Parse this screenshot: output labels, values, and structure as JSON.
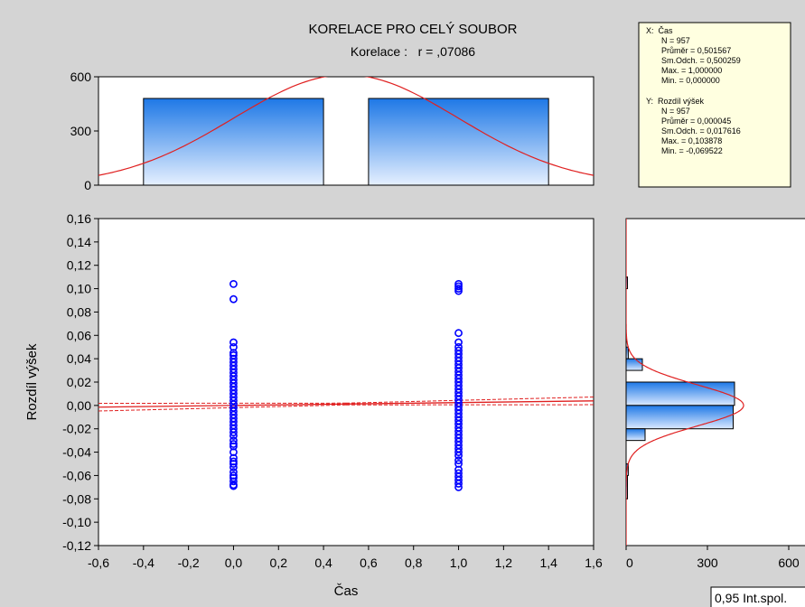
{
  "chart_data": {
    "type": "scatter",
    "title": "KORELACE PRO CELÝ SOUBOR",
    "subtitle": "Korelace :   r = ,07086",
    "xlabel": "Čas",
    "ylabel": "Rozdíl výšek",
    "xlim": [
      -0.6,
      1.6
    ],
    "ylim": [
      -0.12,
      0.16
    ],
    "x_ticks": [
      "-0,6",
      "-0,4",
      "-0,2",
      "0,0",
      "0,2",
      "0,4",
      "0,6",
      "0,8",
      "1,0",
      "1,2",
      "1,4",
      "1,6"
    ],
    "y_ticks": [
      "-0,12",
      "-0,10",
      "-0,08",
      "-0,06",
      "-0,04",
      "-0,02",
      "0,00",
      "0,02",
      "0,04",
      "0,06",
      "0,08",
      "0,10",
      "0,12",
      "0,14",
      "0,16"
    ],
    "point_color": "#0000ff",
    "line_color": "#e02020",
    "series": [
      {
        "x": 0,
        "values": [
          0.104,
          0.091,
          0.054,
          0.05,
          0.045,
          0.043,
          0.04,
          0.037,
          0.034,
          0.031,
          0.028,
          0.025,
          0.022,
          0.019,
          0.016,
          0.013,
          0.01,
          0.007,
          0.004,
          0.001,
          -0.002,
          -0.005,
          -0.008,
          -0.011,
          -0.014,
          -0.017,
          -0.02,
          -0.023,
          -0.026,
          -0.03,
          -0.033,
          -0.035,
          -0.04,
          -0.045,
          -0.048,
          -0.05,
          -0.053,
          -0.057,
          -0.06,
          -0.062,
          -0.065,
          -0.068,
          -0.069
        ]
      },
      {
        "x": 1,
        "values": [
          0.104,
          0.102,
          0.1,
          0.098,
          0.062,
          0.054,
          0.05,
          0.047,
          0.044,
          0.041,
          0.038,
          0.035,
          0.032,
          0.029,
          0.026,
          0.023,
          0.02,
          0.017,
          0.014,
          0.011,
          0.008,
          0.005,
          0.002,
          -0.001,
          -0.004,
          -0.007,
          -0.01,
          -0.013,
          -0.016,
          -0.019,
          -0.022,
          -0.025,
          -0.028,
          -0.031,
          -0.034,
          -0.037,
          -0.04,
          -0.043,
          -0.047,
          -0.05,
          -0.055,
          -0.058,
          -0.061,
          -0.064,
          -0.067,
          -0.07
        ]
      }
    ],
    "regression": {
      "intercept": 0.0,
      "slope": 0.00245
    },
    "ci_offset": 0.0015,
    "top_histogram": {
      "ticks": [
        "0",
        "300",
        "600"
      ],
      "ylim": [
        0,
        600
      ],
      "bins": [
        {
          "x0": -0.4,
          "x1": 0.4,
          "count": 480
        },
        {
          "x0": 0.6,
          "x1": 1.4,
          "count": 480
        }
      ]
    },
    "right_histogram": {
      "ticks": [
        "0",
        "300",
        "600"
      ],
      "xlim": [
        0,
        600
      ],
      "bins": [
        {
          "y0": 0.1,
          "y1": 0.11,
          "count": 5
        },
        {
          "y0": 0.04,
          "y1": 0.05,
          "count": 8
        },
        {
          "y0": 0.03,
          "y1": 0.04,
          "count": 60
        },
        {
          "y0": 0.0,
          "y1": 0.02,
          "count": 400
        },
        {
          "y0": -0.02,
          "y1": 0.0,
          "count": 395
        },
        {
          "y0": -0.03,
          "y1": -0.02,
          "count": 70
        },
        {
          "y0": -0.06,
          "y1": -0.05,
          "count": 8
        },
        {
          "y0": -0.08,
          "y1": -0.06,
          "count": 5
        }
      ]
    },
    "stats_box": {
      "x_header": "X:  Čas",
      "x_lines": [
        "N = 957",
        "Průměr = 0,501567",
        "Sm.Odch. = 0,500259",
        "Max. = 1,000000",
        "Min. = 0,000000"
      ],
      "y_header": "Y:  Rozdíl výšek",
      "y_lines": [
        "N = 957",
        "Průměr = 0,000045",
        "Sm.Odch. = 0,017616",
        "Max. = 0,103878",
        "Min. = -0,069522"
      ]
    },
    "legend_label": "0,95 Int.spol."
  }
}
